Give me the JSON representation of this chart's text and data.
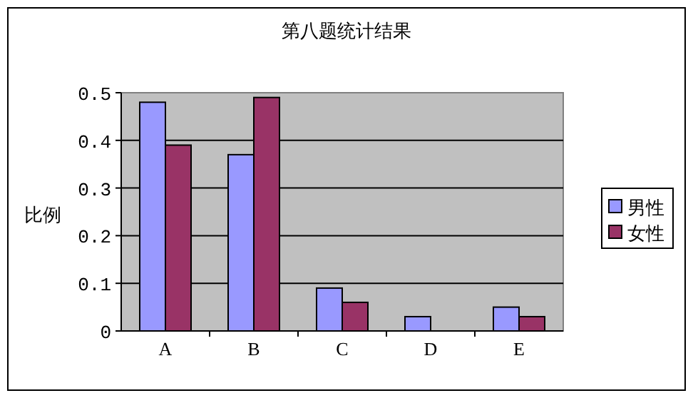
{
  "chart_data": {
    "type": "bar",
    "title": "第八题统计结果",
    "ylabel": "比例",
    "categories": [
      "A",
      "B",
      "C",
      "D",
      "E"
    ],
    "series": [
      {
        "name": "男性",
        "color": "#9999ff",
        "values": [
          0.48,
          0.37,
          0.09,
          0.03,
          0.05
        ]
      },
      {
        "name": "女性",
        "color": "#993366",
        "values": [
          0.39,
          0.49,
          0.06,
          0.0,
          0.03
        ]
      }
    ],
    "ylim": [
      0,
      0.5
    ],
    "yticks": [
      0,
      0.1,
      0.2,
      0.3,
      0.4,
      0.5
    ],
    "grid": "y",
    "legend": "right"
  }
}
